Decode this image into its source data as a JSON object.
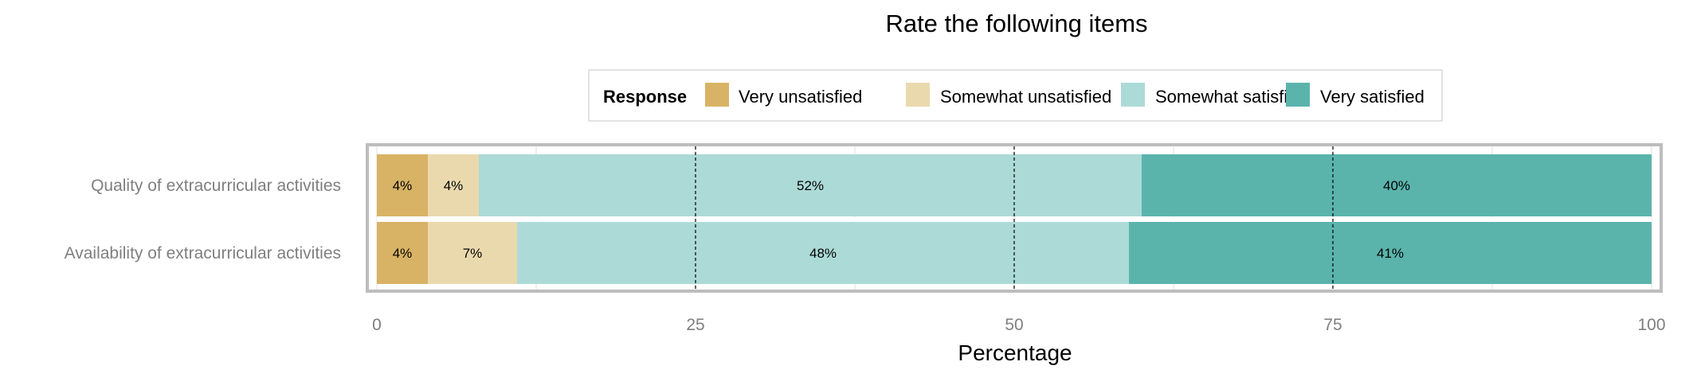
{
  "chart_data": {
    "type": "bar",
    "orientation": "horizontal",
    "stacked": true,
    "title": "Rate the following items",
    "xlabel": "Percentage",
    "ylabel": "",
    "xlim": [
      0,
      100
    ],
    "x_ticks": [
      0,
      25,
      50,
      75,
      100
    ],
    "grid": true,
    "legend": {
      "title": "Response",
      "position": "top"
    },
    "categories": [
      "Quality of extracurricular activities",
      "Availability of extracurricular activities"
    ],
    "series": [
      {
        "name": "Very unsatisfied",
        "color": "#d8b365",
        "values": [
          4,
          4
        ],
        "labels": [
          "4%",
          "4%"
        ]
      },
      {
        "name": "Somewhat unsatisfied",
        "color": "#ebd9ae",
        "values": [
          4,
          7
        ],
        "labels": [
          "4%",
          "7%"
        ]
      },
      {
        "name": "Somewhat satisfied",
        "color": "#acdad7",
        "values": [
          52,
          48
        ],
        "labels": [
          "52%",
          "48%"
        ]
      },
      {
        "name": "Very satisfied",
        "color": "#5ab4ac",
        "values": [
          40,
          41
        ],
        "labels": [
          "40%",
          "41%"
        ]
      }
    ]
  }
}
